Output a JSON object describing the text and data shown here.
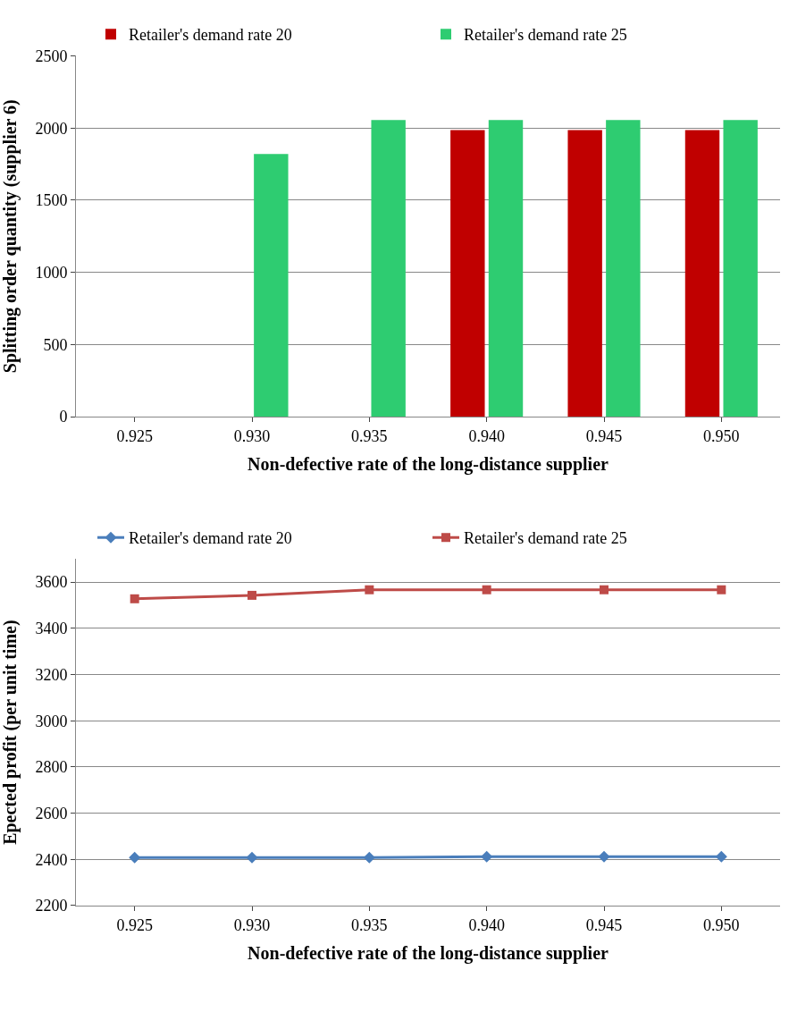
{
  "chart_data": [
    {
      "type": "bar",
      "xlabel": "Non-defective rate of the long-distance supplier",
      "ylabel": "Splitting order quantity (supplier 6)",
      "categories": [
        "0.925",
        "0.930",
        "0.935",
        "0.940",
        "0.945",
        "0.950"
      ],
      "series": [
        {
          "name": "Retailer's demand rate 20",
          "color": "#c00000",
          "values": [
            0,
            0,
            0,
            1985,
            1985,
            1985
          ]
        },
        {
          "name": "Retailer's demand rate 25",
          "color": "#2ecc71",
          "values": [
            0,
            1820,
            2055,
            2055,
            2055,
            2055
          ]
        }
      ],
      "ylim": [
        0,
        2500
      ],
      "yticks": [
        0,
        500,
        1000,
        1500,
        2000,
        2500
      ],
      "grid": "y",
      "legend": "top"
    },
    {
      "type": "line",
      "xlabel": "Non-defective rate of the long-distance supplier",
      "ylabel": "Epected profit (per unit time)",
      "categories": [
        "0.925",
        "0.930",
        "0.935",
        "0.940",
        "0.945",
        "0.950"
      ],
      "series": [
        {
          "name": "Retailer's demand rate 20",
          "color": "#4a7ebb",
          "marker": "diamond",
          "values": [
            2408,
            2408,
            2408,
            2412,
            2412,
            2412
          ]
        },
        {
          "name": "Retailer's demand rate 25",
          "color": "#be4b48",
          "marker": "square",
          "values": [
            3528,
            3543,
            3567,
            3567,
            3567,
            3567
          ]
        }
      ],
      "ylim": [
        2200,
        3700
      ],
      "yticks": [
        2200,
        2400,
        2600,
        2800,
        3000,
        3200,
        3400,
        3600
      ],
      "grid": "y",
      "legend": "top"
    }
  ]
}
